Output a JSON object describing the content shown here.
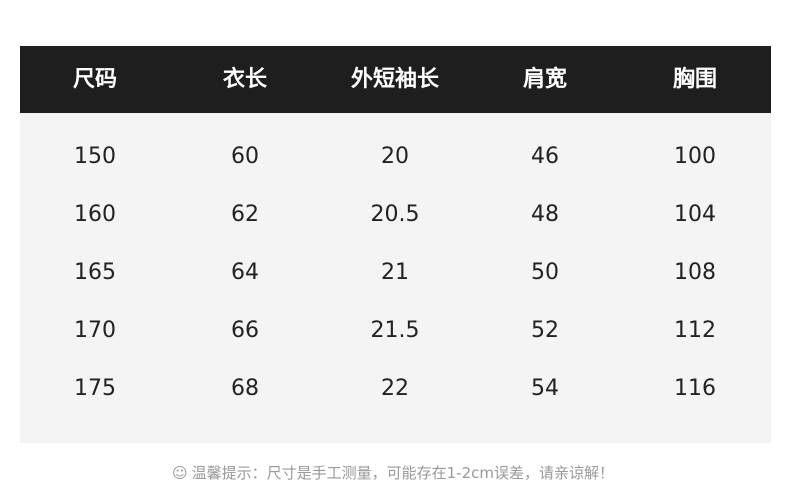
{
  "headers": [
    "尺码",
    "衣长",
    "外短袖长",
    "肩宽",
    "胸围"
  ],
  "rows": [
    [
      "150",
      "60",
      "20",
      "46",
      "100"
    ],
    [
      "160",
      "62",
      "20.5",
      "48",
      "104"
    ],
    [
      "165",
      "64",
      "21",
      "50",
      "108"
    ],
    [
      "170",
      "66",
      "21.5",
      "52",
      "112"
    ],
    [
      "175",
      "68",
      "22",
      "54",
      "116"
    ]
  ],
  "note": {
    "icon": "smiley-icon",
    "text": "温馨提示：尺寸是手工测量，可能存在1-2cm误差，请亲谅解！"
  }
}
